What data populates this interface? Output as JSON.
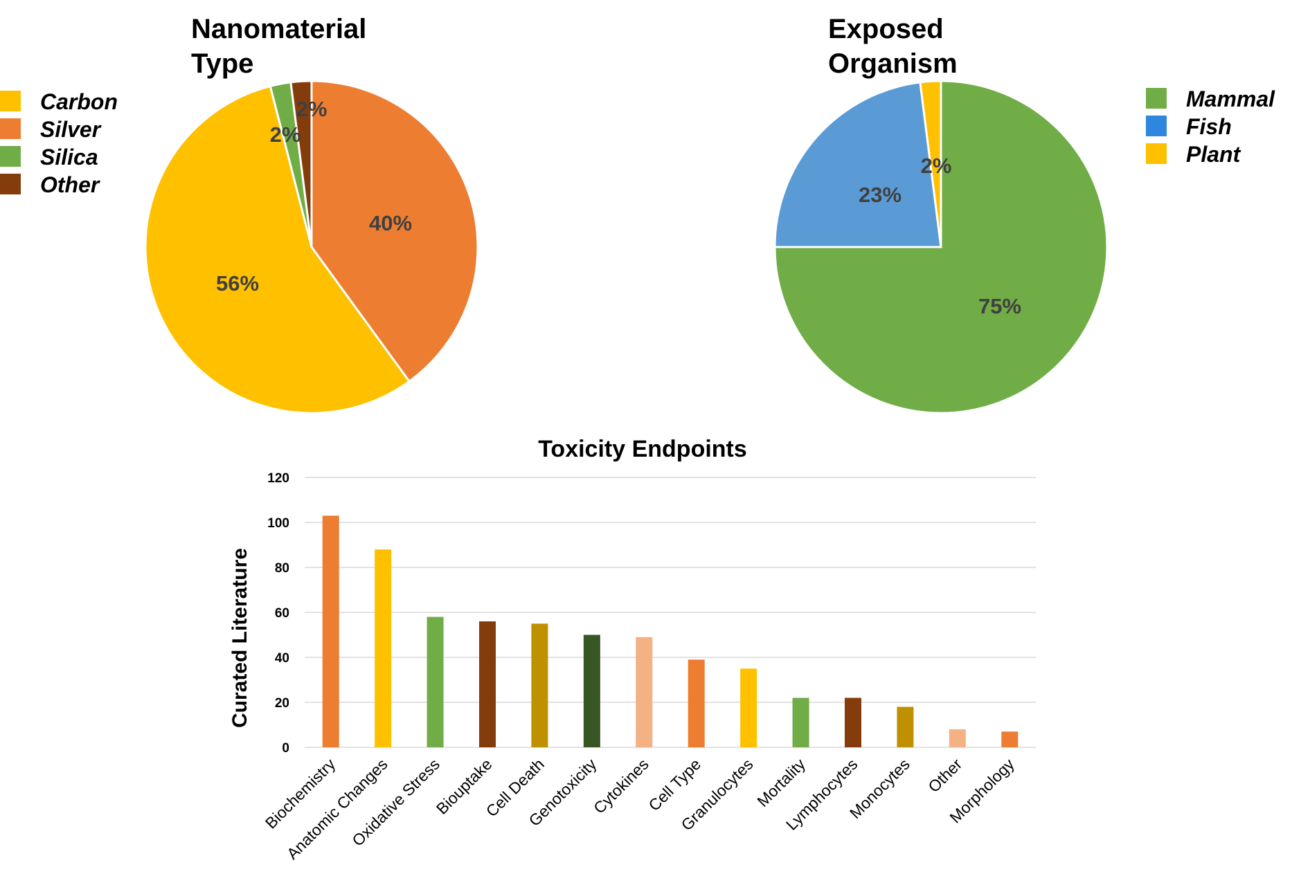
{
  "chart_data": [
    {
      "type": "pie",
      "title_lines": [
        "Nanomaterial",
        "Type"
      ],
      "legend_position": "left",
      "slices": [
        {
          "label": "Silver",
          "value": 40,
          "percent_label": "40%",
          "color": "#ED7D31"
        },
        {
          "label": "Carbon",
          "value": 56,
          "percent_label": "56%",
          "color": "#FFC000"
        },
        {
          "label": "Silica",
          "value": 2,
          "percent_label": "2%",
          "color": "#70AD47"
        },
        {
          "label": "Other",
          "value": 2,
          "percent_label": "2%",
          "color": "#843C0C"
        }
      ],
      "legend": [
        "Carbon",
        "Silver",
        "Silica",
        "Other"
      ]
    },
    {
      "type": "pie",
      "title_lines": [
        "Exposed",
        "Organism"
      ],
      "legend_position": "right",
      "slices": [
        {
          "label": "Mammal",
          "value": 75,
          "percent_label": "75%",
          "color": "#70AD47"
        },
        {
          "label": "Fish",
          "value": 23,
          "percent_label": "23%",
          "color": "#5B9BD5"
        },
        {
          "label": "Plant",
          "value": 2,
          "percent_label": "2%",
          "color": "#FFC000"
        }
      ],
      "legend": [
        "Mammal",
        "Fish",
        "Plant"
      ],
      "legend_colors": {
        "Mammal": "#70AD47",
        "Fish": "#2E86DE",
        "Plant": "#FFC000"
      }
    },
    {
      "type": "bar",
      "title": "Toxicity Endpoints",
      "ylabel": "Curated Literature",
      "ylim": [
        0,
        120
      ],
      "yticks": [
        0,
        20,
        40,
        60,
        80,
        100,
        120
      ],
      "grid": true,
      "categories": [
        "Biochemistry",
        "Anatomic Changes",
        "Oxidative Stress",
        "Biouptake",
        "Cell Death",
        "Genotoxicity",
        "Cytokines",
        "Cell Type",
        "Granulocytes",
        "Mortality",
        "Lymphocytes",
        "Monocytes",
        "Other",
        "Morphology"
      ],
      "values": [
        103,
        88,
        58,
        56,
        55,
        50,
        49,
        39,
        35,
        22,
        22,
        18,
        8,
        7
      ],
      "colors": [
        "#ED7D31",
        "#FFC000",
        "#70AD47",
        "#843C0C",
        "#BF9000",
        "#375623",
        "#F4B183",
        "#ED7D31",
        "#FFC000",
        "#70AD47",
        "#843C0C",
        "#BF9000",
        "#F4B183",
        "#ED7D31"
      ]
    }
  ]
}
